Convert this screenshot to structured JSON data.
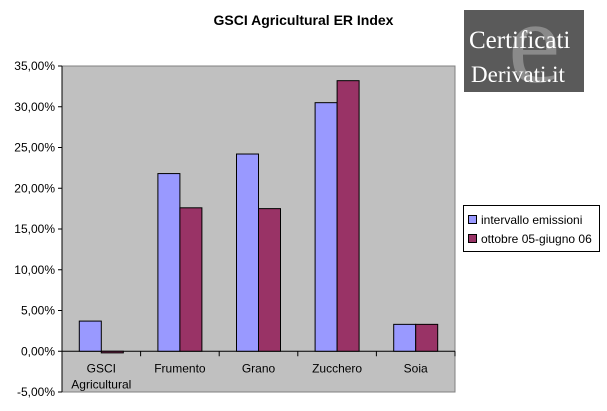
{
  "logo": {
    "line1": "Certificati",
    "line2": "Derivati.it",
    "mark": "e"
  },
  "chart_data": {
    "type": "bar",
    "title": "GSCI Agricultural ER Index",
    "categories": [
      "GSCI Agricultural",
      "Frumento",
      "Grano",
      "Zucchero",
      "Soia"
    ],
    "category_lines": [
      [
        "GSCI",
        "Agricultural"
      ],
      [
        "Frumento"
      ],
      [
        "Grano"
      ],
      [
        "Zucchero"
      ],
      [
        "Soia"
      ]
    ],
    "series": [
      {
        "name": "intervallo emissioni",
        "color": "#9999ff",
        "values": [
          3.7,
          21.8,
          24.2,
          30.5,
          3.3
        ]
      },
      {
        "name": "ottobre 05-giugno 06",
        "color": "#993366",
        "values": [
          -0.2,
          17.6,
          17.5,
          33.2,
          3.3
        ]
      }
    ],
    "ylim": [
      -5,
      35
    ],
    "yticks": [
      -5,
      0,
      5,
      10,
      15,
      20,
      25,
      30,
      35
    ],
    "ytick_labels": [
      "-5,00%",
      "0,00%",
      "5,00%",
      "10,00%",
      "15,00%",
      "20,00%",
      "25,00%",
      "30,00%",
      "35,00%"
    ],
    "xlabel": "",
    "ylabel": "",
    "plot_background": "#c0c0c0",
    "grid": false,
    "legend": "right"
  }
}
